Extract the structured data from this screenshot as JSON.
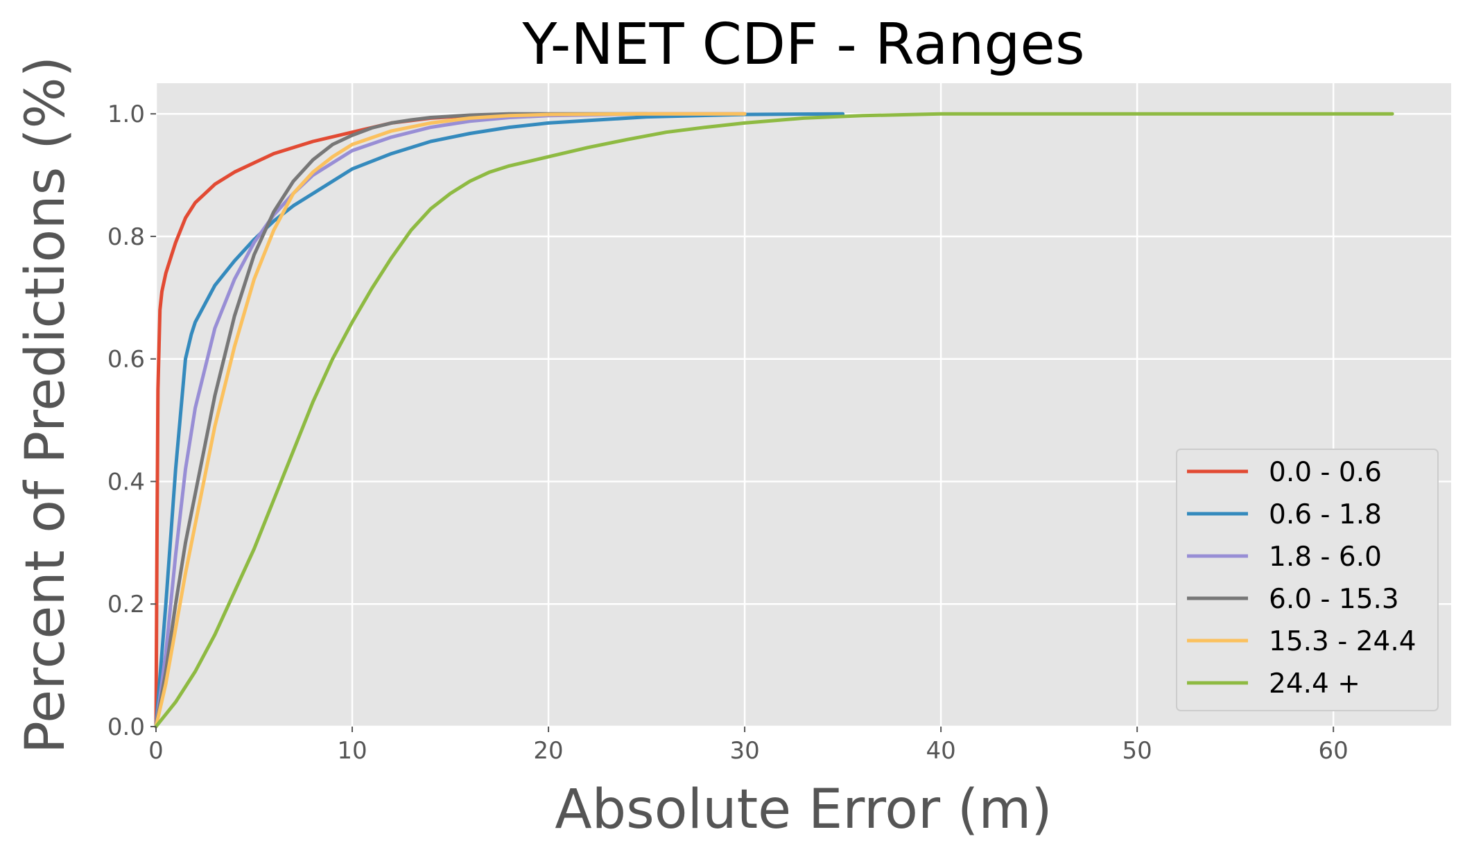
{
  "chart_data": {
    "type": "line",
    "title": "Y-NET CDF - Ranges",
    "xlabel": "Absolute Error (m)",
    "ylabel": "Percent of Predictions (%)",
    "xlim": [
      0,
      66
    ],
    "ylim": [
      0,
      1.05
    ],
    "xticks": [
      0,
      10,
      20,
      30,
      40,
      50,
      60
    ],
    "xtick_labels": [
      "0",
      "10",
      "20",
      "30",
      "40",
      "50",
      "60"
    ],
    "yticks": [
      0.0,
      0.2,
      0.4,
      0.6,
      0.8,
      1.0
    ],
    "ytick_labels": [
      "0.0",
      "0.2",
      "0.4",
      "0.6",
      "0.8",
      "1.0"
    ],
    "grid": true,
    "style": "ggplot",
    "legend_position": "lower-right",
    "series": [
      {
        "name": "0.0 - 0.6",
        "color": "#E24A33",
        "x": [
          0,
          0.05,
          0.1,
          0.2,
          0.3,
          0.5,
          0.8,
          1,
          1.5,
          2,
          2.5,
          3,
          4,
          5,
          6,
          8,
          10,
          12,
          14,
          16,
          20,
          25,
          30
        ],
        "y": [
          0,
          0.3,
          0.55,
          0.68,
          0.71,
          0.74,
          0.77,
          0.79,
          0.83,
          0.855,
          0.87,
          0.885,
          0.905,
          0.92,
          0.935,
          0.955,
          0.97,
          0.985,
          0.993,
          0.997,
          0.999,
          1.0,
          1.0
        ]
      },
      {
        "name": "0.6 - 1.8",
        "color": "#348ABD",
        "x": [
          0,
          0.5,
          1,
          1.5,
          1.8,
          2,
          3,
          4,
          5,
          6,
          7,
          8,
          10,
          12,
          14,
          16,
          18,
          20,
          25,
          30,
          35
        ],
        "y": [
          0,
          0.2,
          0.42,
          0.6,
          0.64,
          0.66,
          0.72,
          0.76,
          0.795,
          0.825,
          0.85,
          0.87,
          0.91,
          0.935,
          0.955,
          0.968,
          0.978,
          0.985,
          0.995,
          0.999,
          1.0
        ]
      },
      {
        "name": "1.8 - 6.0",
        "color": "#988ED5",
        "x": [
          0,
          0.5,
          1,
          1.5,
          2,
          3,
          4,
          5,
          6,
          7,
          8,
          10,
          12,
          14,
          16,
          18,
          20,
          25,
          30
        ],
        "y": [
          0,
          0.12,
          0.28,
          0.42,
          0.52,
          0.65,
          0.73,
          0.79,
          0.835,
          0.87,
          0.9,
          0.94,
          0.962,
          0.978,
          0.988,
          0.994,
          0.997,
          1.0,
          1.0
        ]
      },
      {
        "name": "6.0 - 15.3",
        "color": "#777777",
        "x": [
          0,
          0.5,
          1,
          1.5,
          2,
          3,
          4,
          5,
          6,
          7,
          8,
          9,
          10,
          11,
          12,
          13,
          14,
          16,
          18,
          20,
          25
        ],
        "y": [
          0,
          0.09,
          0.2,
          0.3,
          0.38,
          0.54,
          0.67,
          0.77,
          0.84,
          0.89,
          0.925,
          0.95,
          0.965,
          0.977,
          0.985,
          0.99,
          0.994,
          0.998,
          1.0,
          1.0,
          1.0
        ]
      },
      {
        "name": "15.3 - 24.4",
        "color": "#FBC15E",
        "x": [
          0,
          0.5,
          1,
          1.5,
          2,
          3,
          4,
          5,
          6,
          7,
          8,
          9,
          10,
          12,
          14,
          16,
          18,
          20,
          25,
          30
        ],
        "y": [
          0,
          0.07,
          0.16,
          0.25,
          0.33,
          0.49,
          0.62,
          0.73,
          0.81,
          0.87,
          0.905,
          0.93,
          0.95,
          0.972,
          0.985,
          0.993,
          0.997,
          0.999,
          1.0,
          1.0
        ]
      },
      {
        "name": "24.4 +",
        "color": "#8EBA42",
        "x": [
          0,
          1,
          2,
          3,
          4,
          5,
          6,
          7,
          8,
          9,
          10,
          11,
          12,
          13,
          14,
          15,
          16,
          17,
          18,
          20,
          22,
          24,
          26,
          28,
          30,
          33,
          36,
          40,
          45,
          50,
          55,
          60,
          63
        ],
        "y": [
          0,
          0.04,
          0.09,
          0.15,
          0.22,
          0.29,
          0.37,
          0.45,
          0.53,
          0.6,
          0.66,
          0.715,
          0.765,
          0.81,
          0.845,
          0.87,
          0.89,
          0.905,
          0.915,
          0.93,
          0.945,
          0.958,
          0.97,
          0.978,
          0.985,
          0.993,
          0.997,
          1.0,
          1.0,
          1.0,
          1.0,
          1.0,
          1.0
        ]
      }
    ]
  }
}
